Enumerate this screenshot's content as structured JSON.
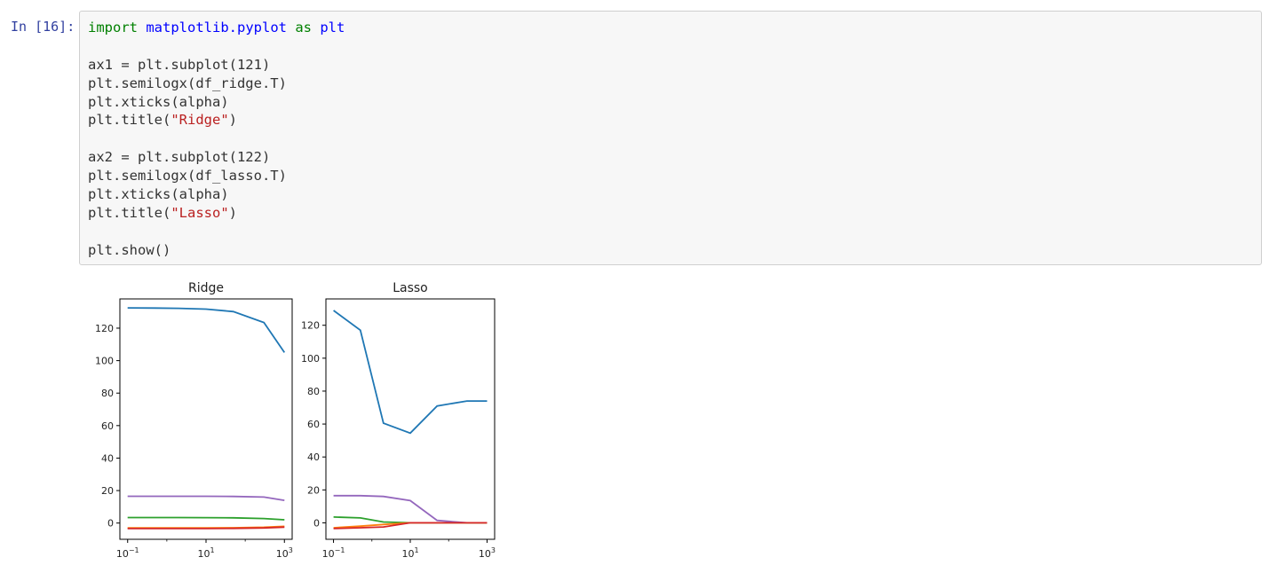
{
  "cell": {
    "prompt": "In [16]:",
    "code_lines": [
      [
        {
          "t": "import",
          "c": "kw"
        },
        {
          "t": " "
        },
        {
          "t": "matplotlib.pyplot",
          "c": "mod"
        },
        {
          "t": " "
        },
        {
          "t": "as",
          "c": "kw"
        },
        {
          "t": " "
        },
        {
          "t": "plt",
          "c": "mod"
        }
      ],
      [],
      [
        {
          "t": "ax1 = plt.subplot(121)"
        }
      ],
      [
        {
          "t": "plt.semilogx(df_ridge.T)"
        }
      ],
      [
        {
          "t": "plt.xticks(alpha)"
        }
      ],
      [
        {
          "t": "plt.title("
        },
        {
          "t": "\"Ridge\"",
          "c": "str"
        },
        {
          "t": ")"
        }
      ],
      [],
      [
        {
          "t": "ax2 = plt.subplot(122)"
        }
      ],
      [
        {
          "t": "plt.semilogx(df_lasso.T)"
        }
      ],
      [
        {
          "t": "plt.xticks(alpha)"
        }
      ],
      [
        {
          "t": "plt.title("
        },
        {
          "t": "\"Lasso\"",
          "c": "str"
        },
        {
          "t": ")"
        }
      ],
      [],
      [
        {
          "t": "plt.show()"
        }
      ]
    ]
  },
  "chart_data": [
    {
      "type": "line",
      "title": "Ridge",
      "xscale": "log",
      "x": [
        0.1,
        0.5,
        2,
        10,
        50,
        300,
        1000
      ],
      "xticks": [
        {
          "base": "10",
          "exp": "−1"
        },
        {
          "base": "10",
          "exp": "1"
        },
        {
          "base": "10",
          "exp": "3"
        }
      ],
      "xtick_values": [
        0.1,
        10,
        1000
      ],
      "yticks": [
        "0",
        "20",
        "40",
        "60",
        "80",
        "100",
        "120"
      ],
      "ytick_values": [
        0,
        20,
        40,
        60,
        80,
        100,
        120
      ],
      "ylim": [
        -10,
        138
      ],
      "grid": false,
      "series": [
        {
          "color": "#1f77b4",
          "values": [
            132.5,
            132.4,
            132.2,
            131.7,
            130.2,
            123.5,
            105
          ]
        },
        {
          "color": "#9467bd",
          "values": [
            16.5,
            16.5,
            16.5,
            16.5,
            16.4,
            16,
            14
          ]
        },
        {
          "color": "#2ca02c",
          "values": [
            3.4,
            3.4,
            3.4,
            3.3,
            3.2,
            2.8,
            2
          ]
        },
        {
          "color": "#ff7f0e",
          "values": [
            -3,
            -3,
            -3,
            -3,
            -2.9,
            -2.6,
            -2
          ]
        },
        {
          "color": "#d62728",
          "values": [
            -3.4,
            -3.4,
            -3.4,
            -3.4,
            -3.3,
            -3,
            -2.5
          ]
        }
      ]
    },
    {
      "type": "line",
      "title": "Lasso",
      "xscale": "log",
      "x": [
        0.1,
        0.5,
        2,
        10,
        50,
        300,
        1000
      ],
      "xticks": [
        {
          "base": "10",
          "exp": "−1"
        },
        {
          "base": "10",
          "exp": "1"
        },
        {
          "base": "10",
          "exp": "3"
        }
      ],
      "xtick_values": [
        0.1,
        10,
        1000
      ],
      "yticks": [
        "0",
        "20",
        "40",
        "60",
        "80",
        "100",
        "120"
      ],
      "ytick_values": [
        0,
        20,
        40,
        60,
        80,
        100,
        120
      ],
      "ylim": [
        -10,
        136
      ],
      "grid": false,
      "series": [
        {
          "color": "#1f77b4",
          "values": [
            129,
            117,
            60.5,
            54.5,
            71,
            74,
            74
          ]
        },
        {
          "color": "#9467bd",
          "values": [
            16.5,
            16.5,
            16,
            13.5,
            1.5,
            0,
            0
          ]
        },
        {
          "color": "#2ca02c",
          "values": [
            3.5,
            3,
            0.5,
            0,
            0,
            0,
            0
          ]
        },
        {
          "color": "#ff7f0e",
          "values": [
            -3,
            -2,
            -1,
            0,
            0,
            0,
            0
          ]
        },
        {
          "color": "#d62728",
          "values": [
            -3.5,
            -3,
            -2.5,
            0,
            0,
            0,
            0
          ]
        }
      ]
    }
  ]
}
